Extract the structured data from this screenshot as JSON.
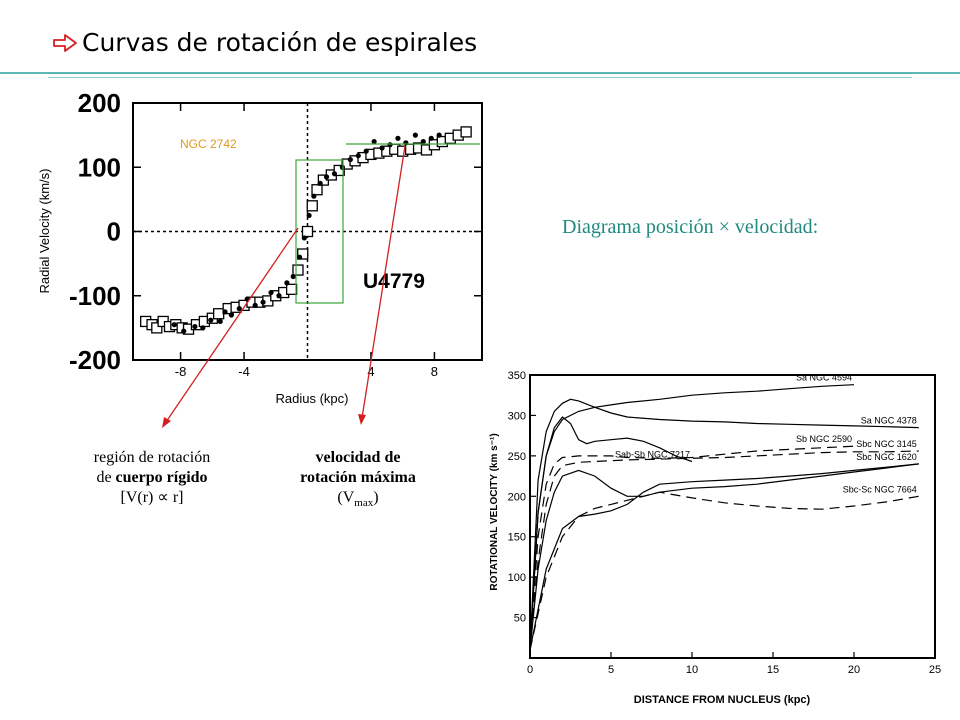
{
  "slide": {
    "title": "Curvas de rotación de espirales",
    "diagram_label": "Diagrama posición × velocidad:",
    "accent_color": "#1f8a7e",
    "arrow_color": "#d22020",
    "box_color": "#3aa63a",
    "annotation_left": {
      "line1": "región de rotación",
      "line2a": "de ",
      "line2b": "cuerpo rígido",
      "line3": "[V(r) ∝ r]"
    },
    "annotation_right": {
      "line1": "velocidad de",
      "line2": "rotación máxima",
      "line3a": "(V",
      "line3sub": "max",
      "line3b": ")"
    }
  },
  "chart_data": [
    {
      "type": "scatter",
      "title": "U4779",
      "label": "NGC 2742",
      "xlabel": "Radius (kpc)",
      "ylabel": "Radial Velocity (km/s)",
      "xlim": [
        -11,
        11
      ],
      "ylim": [
        -200,
        200
      ],
      "xticks": [
        "-8",
        "-4",
        "4",
        "8"
      ],
      "yticks": [
        "200",
        "100",
        "0",
        "-100",
        "-200"
      ],
      "grid": false,
      "series": [
        {
          "marker": "square",
          "x": [
            -10.2,
            -9.8,
            -9.5,
            -9.1,
            -8.7,
            -8.3,
            -7.9,
            -7.5,
            -7.0,
            -6.5,
            -6.0,
            -5.6,
            -5.0,
            -4.5,
            -4.0,
            -3.5,
            -3.0,
            -2.5,
            -2.0,
            -1.5,
            -1.0,
            -0.6,
            -0.3,
            0.0,
            0.3,
            0.6,
            1.0,
            1.5,
            2.0,
            2.5,
            3.0,
            3.5,
            4.0,
            4.5,
            5.0,
            5.5,
            6.0,
            6.5,
            7.0,
            7.5,
            8.0,
            8.5,
            9.0,
            9.5,
            10.0
          ],
          "y": [
            -140,
            -145,
            -150,
            -140,
            -148,
            -145,
            -150,
            -152,
            -145,
            -140,
            -135,
            -128,
            -120,
            -118,
            -115,
            -110,
            -110,
            -108,
            -100,
            -95,
            -90,
            -60,
            -35,
            0,
            40,
            65,
            80,
            88,
            95,
            105,
            110,
            115,
            120,
            122,
            125,
            128,
            125,
            128,
            130,
            127,
            135,
            140,
            145,
            150,
            155
          ]
        },
        {
          "marker": "dot",
          "x": [
            -8.4,
            -7.8,
            -7.1,
            -6.6,
            -6.1,
            -5.5,
            -5.2,
            -4.8,
            -4.3,
            -3.8,
            -3.3,
            -2.8,
            -2.3,
            -1.8,
            -1.3,
            -0.9,
            -0.5,
            -0.2,
            0.1,
            0.4,
            0.8,
            1.2,
            1.7,
            2.2,
            2.7,
            3.2,
            3.7,
            4.2,
            4.7,
            5.2,
            5.7,
            6.2,
            6.8,
            7.3,
            7.8,
            8.3
          ],
          "y": [
            -145,
            -155,
            -148,
            -150,
            -138,
            -140,
            -125,
            -130,
            -120,
            -105,
            -115,
            -110,
            -95,
            -100,
            -80,
            -70,
            -40,
            -10,
            25,
            55,
            75,
            85,
            90,
            100,
            112,
            118,
            125,
            140,
            130,
            135,
            145,
            138,
            150,
            140,
            145,
            150
          ]
        }
      ],
      "annotations": [
        "NGC 2742",
        "U4779"
      ]
    },
    {
      "type": "line",
      "xlabel": "DISTANCE FROM NUCLEUS (kpc)",
      "ylabel": "ROTATIONAL VELOCITY (km s⁻¹)",
      "xlim": [
        0,
        25
      ],
      "ylim": [
        0,
        350
      ],
      "xticks": [
        "0",
        "5",
        "10",
        "15",
        "20",
        "25"
      ],
      "yticks": [
        "50",
        "100",
        "150",
        "200",
        "250",
        "300",
        "350"
      ],
      "grid": false,
      "series": [
        {
          "name": "Sa NGC 4594",
          "style": "solid",
          "x": [
            0,
            0.5,
            1,
            1.5,
            2,
            3,
            4,
            5,
            6,
            8,
            10,
            12,
            14,
            16,
            18,
            20
          ],
          "y": [
            10,
            180,
            250,
            280,
            295,
            305,
            310,
            313,
            316,
            320,
            325,
            328,
            330,
            333,
            336,
            338
          ]
        },
        {
          "name": "Sa NGC 4378",
          "style": "solid",
          "x": [
            0,
            0.5,
            1,
            1.5,
            2,
            2.5,
            3,
            4,
            5,
            6,
            8,
            10,
            12,
            14,
            16,
            18,
            20,
            22,
            24
          ],
          "y": [
            10,
            220,
            280,
            305,
            315,
            320,
            318,
            310,
            303,
            298,
            295,
            293,
            292,
            290,
            289,
            288,
            287,
            286,
            285
          ]
        },
        {
          "name": "Sab-Sb NGC 7217",
          "style": "solid",
          "x": [
            0,
            0.5,
            1,
            1.5,
            2,
            2.5,
            3,
            3.5,
            4,
            5,
            6,
            7,
            8,
            9,
            10
          ],
          "y": [
            10,
            180,
            250,
            285,
            298,
            290,
            270,
            265,
            268,
            270,
            272,
            268,
            260,
            250,
            243
          ]
        },
        {
          "name": "Sb NGC 2590",
          "style": "dashed",
          "x": [
            0,
            0.5,
            1,
            1.5,
            2,
            3,
            4,
            5,
            6,
            8,
            10,
            12,
            14,
            16,
            18,
            20
          ],
          "y": [
            10,
            150,
            215,
            240,
            248,
            250,
            250,
            250,
            248,
            247,
            248,
            252,
            256,
            258,
            260,
            262
          ]
        },
        {
          "name": "Sbc NGC 3145",
          "style": "dashed",
          "x": [
            0,
            0.5,
            1,
            1.5,
            2,
            3,
            4,
            5,
            6,
            8,
            10,
            12,
            14,
            16,
            18,
            20,
            22,
            24
          ],
          "y": [
            10,
            120,
            190,
            225,
            238,
            242,
            243,
            244,
            245,
            246,
            247,
            248,
            250,
            252,
            254,
            255,
            255,
            256
          ]
        },
        {
          "name": "Sbc NGC 1620",
          "style": "solid",
          "x": [
            0,
            0.5,
            1,
            1.5,
            2,
            3,
            4,
            5,
            6,
            7,
            8,
            10,
            12,
            14,
            16,
            18,
            20,
            22,
            24
          ],
          "y": [
            10,
            110,
            170,
            205,
            225,
            232,
            225,
            210,
            200,
            200,
            205,
            210,
            212,
            215,
            220,
            225,
            230,
            235,
            240
          ]
        },
        {
          "name": "Sbc-Sc NGC 7664",
          "style": "dashed",
          "x": [
            0,
            1,
            2,
            3,
            4,
            5,
            6,
            7,
            8,
            10,
            12,
            14,
            16,
            18,
            20,
            22,
            24
          ],
          "y": [
            10,
            100,
            150,
            175,
            185,
            190,
            195,
            200,
            205,
            198,
            192,
            188,
            185,
            184,
            188,
            193,
            200
          ]
        },
        {
          "name": "",
          "style": "solid",
          "x": [
            0,
            1,
            2,
            3,
            4,
            5,
            6,
            7,
            8,
            10,
            12,
            14,
            16,
            18,
            20,
            22,
            24
          ],
          "y": [
            10,
            110,
            160,
            175,
            178,
            182,
            190,
            205,
            215,
            218,
            220,
            222,
            225,
            228,
            232,
            236,
            240
          ]
        }
      ]
    }
  ]
}
